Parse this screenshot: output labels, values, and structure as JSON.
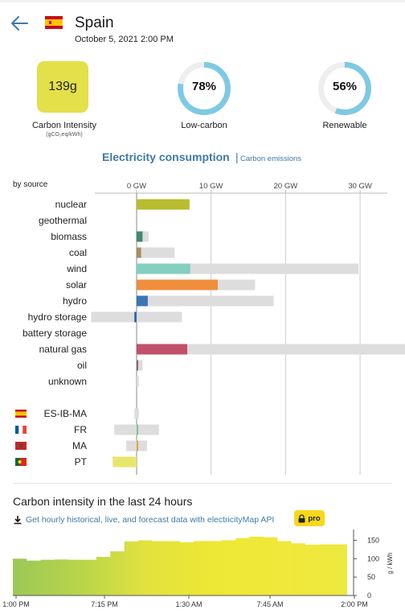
{
  "header": {
    "back_icon": "back-arrow-icon",
    "flag_icon": "spain-flag-icon",
    "country": "Spain",
    "datetime": "October 5, 2021 2:00 PM"
  },
  "kpi": {
    "carbon_intensity": {
      "value": "139g",
      "label": "Carbon Intensity",
      "unit": "(gCO₂eq/kWh)",
      "color": "#e4e04a"
    },
    "low_carbon": {
      "value": "78%",
      "label": "Low-carbon",
      "fraction": 0.78
    },
    "renewable": {
      "value": "56%",
      "label": "Renewable",
      "fraction": 0.56
    },
    "gauge_color": "#7ec9e3",
    "gauge_track": "#eeeeee"
  },
  "tabs": {
    "active": "Electricity consumption",
    "separator": "|",
    "other": "Carbon emissions"
  },
  "chart_data": {
    "type": "bar",
    "title": "Electricity consumption",
    "xlabel": "by source",
    "unit": "GW",
    "x_ticks": [
      "0 GW",
      "10 GW",
      "20 GW",
      "30 GW"
    ],
    "tick_values": [
      0,
      10,
      20,
      30
    ],
    "xlim": [
      -6.1,
      36.6
    ],
    "sources": [
      {
        "name": "nuclear",
        "production": 7.1,
        "capacity": 7.1,
        "color": "#b8bc2e"
      },
      {
        "name": "geothermal",
        "production": 0,
        "capacity": 0,
        "color": "#c5a35a"
      },
      {
        "name": "biomass",
        "production": 0.8,
        "capacity": 1.6,
        "color": "#3e8a6e"
      },
      {
        "name": "coal",
        "production": 0.6,
        "capacity": 5.1,
        "color": "#a3905e"
      },
      {
        "name": "wind",
        "production": 7.2,
        "capacity": 29.8,
        "color": "#84cfc0"
      },
      {
        "name": "solar",
        "production": 10.9,
        "capacity": 15.9,
        "color": "#ef8e3d"
      },
      {
        "name": "hydro",
        "production": 1.5,
        "capacity": 18.4,
        "color": "#3a76b4"
      },
      {
        "name": "hydro storage",
        "production": -0.3,
        "capacity": 6.1,
        "capacity_negative": -6.1,
        "color": "#2c64a8"
      },
      {
        "name": "battery storage",
        "production": 0,
        "capacity": 0,
        "color": "#6d7db5"
      },
      {
        "name": "natural gas",
        "production": 6.8,
        "capacity": 36.6,
        "color": "#c05168"
      },
      {
        "name": "oil",
        "production": 0.2,
        "capacity": 0.8,
        "color": "#8a6a6a"
      },
      {
        "name": "unknown",
        "production": 0,
        "capacity": 0.3,
        "color": "#999999"
      }
    ],
    "exchanges": [
      {
        "name": "ES-IB-MA",
        "flag_icon": "spain-flag-icon",
        "value": 0,
        "capacity_low": -0.3,
        "capacity_high": 0.3,
        "color": "#dddddd"
      },
      {
        "name": "FR",
        "flag_icon": "france-flag-icon",
        "value": 0.2,
        "capacity_low": -3.0,
        "capacity_high": 3.0,
        "color": "#7bc67e"
      },
      {
        "name": "MA",
        "flag_icon": "morocco-flag-icon",
        "value": 0.1,
        "capacity_low": -1.4,
        "capacity_high": 1.4,
        "color": "#e8a040"
      },
      {
        "name": "PT",
        "flag_icon": "portugal-flag-icon",
        "value": -3.2,
        "capacity_low": -3.2,
        "capacity_high": 0,
        "color": "#e8e66a"
      }
    ],
    "capacity_color": "#dddddd",
    "grid": true
  },
  "history": {
    "title": "Carbon intensity in the last 24 hours",
    "download_icon": "download-icon",
    "link": "Get hourly historical, live, and forecast data with electricityMap API",
    "lock_icon": "lock-icon",
    "pro": "pro",
    "chart_data": {
      "type": "area",
      "x_ticks": [
        "1:00 PM",
        "7:15 PM",
        "1:30 AM",
        "7:45 AM",
        "2:00 PM"
      ],
      "y_ticks": [
        "0",
        "50",
        "100",
        "150"
      ],
      "ylabel": "g / kWh",
      "ylim": [
        0,
        175
      ],
      "values": [
        100,
        95,
        97,
        98,
        97,
        97,
        105,
        120,
        147,
        150,
        148,
        148,
        145,
        148,
        148,
        150,
        156,
        160,
        158,
        148,
        142,
        138,
        139,
        139
      ],
      "gradient": [
        "#9cc857",
        "#b8d44a",
        "#e2e23e",
        "#ede835",
        "#f0e83a",
        "#ecea3e"
      ]
    }
  }
}
